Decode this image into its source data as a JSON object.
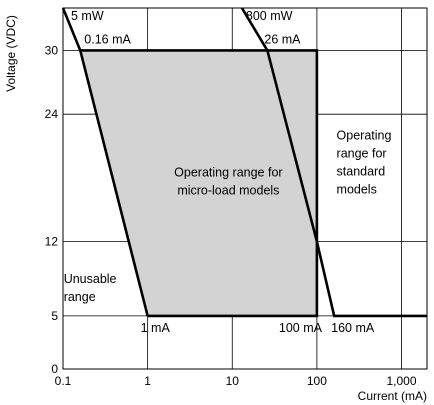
{
  "chart_data": {
    "type": "area",
    "title": "",
    "xlabel": "Current (mA)",
    "ylabel": "Voltage (VDC)",
    "xscale": "log",
    "xlim": [
      0.1,
      2000
    ],
    "ylim": [
      0,
      34
    ],
    "x_ticks": [
      {
        "value": 0.1,
        "label": "0.1"
      },
      {
        "value": 1,
        "label": "1"
      },
      {
        "value": 10,
        "label": "10"
      },
      {
        "value": 100,
        "label": "100"
      },
      {
        "value": 1000,
        "label": "1,000"
      }
    ],
    "y_ticks": [
      {
        "value": 0,
        "label": "0"
      },
      {
        "value": 5,
        "label": "5"
      },
      {
        "value": 12,
        "label": "12"
      },
      {
        "value": 24,
        "label": "24"
      },
      {
        "value": 30,
        "label": "30"
      }
    ],
    "grid": true,
    "colors": {
      "region_fill": "#d3d3d3",
      "lines": "#000000",
      "grid": "#000000"
    },
    "regions": [
      {
        "label": "Operating range for micro-load models",
        "points": [
          [
            0.16,
            30
          ],
          [
            100,
            30
          ],
          [
            100,
            5
          ],
          [
            1,
            5
          ]
        ]
      }
    ],
    "lines": [
      {
        "name": "5 mW",
        "label": "5 mW",
        "points": [
          [
            0.1,
            34
          ],
          [
            0.16,
            30
          ],
          [
            1,
            5
          ]
        ]
      },
      {
        "name": "800 mW",
        "label": "800 mW",
        "points": [
          [
            13,
            34
          ],
          [
            26,
            30
          ],
          [
            100,
            12
          ],
          [
            160,
            5
          ],
          [
            2000,
            5
          ]
        ]
      },
      {
        "name": "micro-load boundary",
        "points": [
          [
            0.16,
            30
          ],
          [
            100,
            30
          ],
          [
            100,
            5
          ],
          [
            1,
            5
          ]
        ]
      }
    ],
    "annotations": [
      {
        "text": "0.16 mA",
        "x": 0.16,
        "y": 30
      },
      {
        "text": "26 mA",
        "x": 26,
        "y": 30
      },
      {
        "text": "1 mA",
        "x": 1,
        "y": 5
      },
      {
        "text": "100 mA",
        "x": 100,
        "y": 5
      },
      {
        "text": "160 mA",
        "x": 160,
        "y": 5
      },
      {
        "text": "Unusable",
        "x": 0.12,
        "y": 8.5
      },
      {
        "text": "range",
        "x": 0.12,
        "y": 6.8
      },
      {
        "text": "Operating",
        "x": 130,
        "y": 22
      },
      {
        "text": "range for",
        "x": 130,
        "y": 20.3
      },
      {
        "text": "standard",
        "x": 130,
        "y": 18.6
      },
      {
        "text": "models",
        "x": 130,
        "y": 16.9
      },
      {
        "text": "Operating range for",
        "x": 9,
        "y": 18.5
      },
      {
        "text": "micro-load models",
        "x": 9,
        "y": 16.8
      }
    ]
  }
}
